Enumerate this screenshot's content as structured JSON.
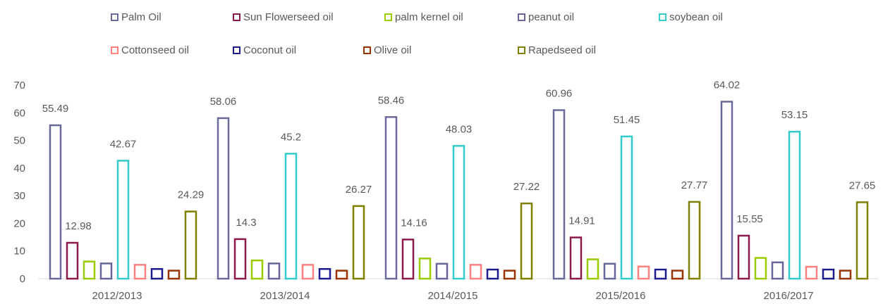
{
  "chart_data": {
    "type": "bar",
    "categories": [
      "2012/2013",
      "2013/2014",
      "2014/2015",
      "2015/2016",
      "2016/2017"
    ],
    "ylim": [
      0,
      70
    ],
    "yticks": [
      0,
      10,
      20,
      30,
      40,
      50,
      60,
      70
    ],
    "grid": false,
    "legend_position": "top",
    "bar_style": "outlined",
    "series": [
      {
        "name": "Palm Oil",
        "color": "#6a6a9a",
        "values": [
          55.49,
          58.06,
          58.46,
          60.96,
          64.02
        ],
        "labels": [
          "55.49",
          "58.06",
          "58.46",
          "60.96",
          "64.02"
        ]
      },
      {
        "name": "Sun Flowerseed oil",
        "color": "#8b1a4a",
        "values": [
          12.98,
          14.3,
          14.16,
          14.91,
          15.55
        ],
        "labels": [
          "12.98",
          "14.3",
          "14.16",
          "14.91",
          "15.55"
        ]
      },
      {
        "name": "palm kernel oil",
        "color": "#99cc00",
        "values": [
          6.2,
          6.6,
          7.3,
          7.0,
          7.5
        ],
        "labels": []
      },
      {
        "name": "peanut oil",
        "color": "#66669a",
        "values": [
          5.5,
          5.5,
          5.4,
          5.4,
          5.9
        ],
        "labels": []
      },
      {
        "name": "soybean oil",
        "color": "#33cccc",
        "values": [
          42.67,
          45.2,
          48.03,
          51.45,
          53.15
        ],
        "labels": [
          "42.67",
          "45.2",
          "48.03",
          "51.45",
          "53.15"
        ]
      },
      {
        "name": "Cottonseed oil",
        "color": "#ff8080",
        "values": [
          5.0,
          5.0,
          5.0,
          4.4,
          4.3
        ],
        "labels": []
      },
      {
        "name": "Coconut oil",
        "color": "#1c1c8c",
        "values": [
          3.5,
          3.5,
          3.3,
          3.3,
          3.3
        ],
        "labels": []
      },
      {
        "name": "Olive oil",
        "color": "#993300",
        "values": [
          2.9,
          2.9,
          2.9,
          2.9,
          2.9
        ],
        "labels": []
      },
      {
        "name": "Rapedseed oil",
        "color": "#808000",
        "values": [
          24.29,
          26.27,
          27.22,
          27.77,
          27.65
        ],
        "labels": [
          "24.29",
          "26.27",
          "27.22",
          "27.77",
          "27.65"
        ]
      }
    ]
  }
}
